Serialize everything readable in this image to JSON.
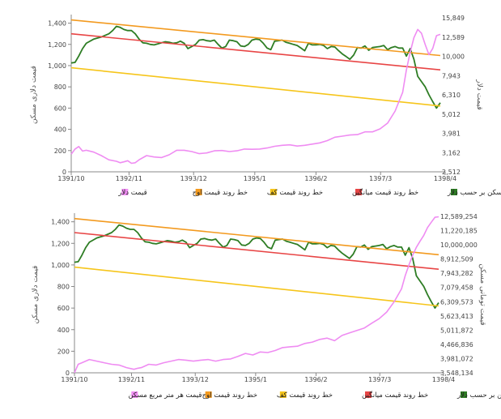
{
  "chart_data": [
    {
      "type": "line",
      "ylabel": "قیمت دلاری مسکن",
      "y2label": "قیمت دلار",
      "ylim": [
        0,
        1450
      ],
      "yticks": [
        0,
        200,
        400,
        600,
        800,
        1000,
        1200,
        1400
      ],
      "ytick_labels": [
        "0",
        "200",
        "400",
        "600",
        "800",
        "1,000",
        "1,200",
        "1,400"
      ],
      "y2lim": [
        2512,
        15849
      ],
      "y2ticks": [
        2512,
        3162,
        3981,
        5012,
        6310,
        7943,
        10000,
        12589,
        15849
      ],
      "y2tick_labels": [
        "2,512",
        "3,162",
        "3,981",
        "5,012",
        "6,310",
        "7,943",
        "10,000",
        "12,589",
        "15,849"
      ],
      "xlim": [
        0,
        98
      ],
      "xticks": [
        0,
        17,
        36,
        54,
        72,
        91
      ],
      "xtick_labels": [
        "1391/10",
        "1392/11",
        "1393/12",
        "1395/1",
        "1396/2",
        "1397/3",
        "1398/4"
      ],
      "xtick_positions": [
        0,
        17,
        36,
        54,
        72,
        91,
        110
      ],
      "series": [
        {
          "name": "قیمت مسکن بر حسب دلار",
          "color": "#2e7d24",
          "x": [
            0,
            1,
            2,
            3,
            4,
            6,
            7,
            8,
            10,
            11,
            12,
            13,
            14,
            15,
            16,
            17,
            18,
            19,
            20,
            21,
            22,
            23,
            24,
            25,
            26,
            27,
            28,
            29,
            30,
            31,
            32,
            33,
            34,
            35,
            36,
            37,
            38,
            39,
            40,
            41,
            42,
            43,
            44,
            45,
            46,
            47,
            48,
            49,
            50,
            51,
            52,
            53,
            54,
            55,
            56,
            57,
            58,
            59,
            60,
            61,
            62,
            63,
            64,
            65,
            66,
            67,
            68,
            69,
            70,
            71,
            72,
            73,
            74,
            75,
            76,
            77,
            78,
            79,
            80,
            81,
            82,
            83,
            84,
            85,
            86,
            87,
            88,
            89,
            90,
            91,
            92,
            93,
            94,
            95,
            96,
            97,
            98
          ],
          "values": [
            1025,
            1030,
            1090,
            1160,
            1210,
            1250,
            1260,
            1270,
            1300,
            1330,
            1370,
            1360,
            1340,
            1330,
            1330,
            1300,
            1250,
            1215,
            1210,
            1200,
            1195,
            1205,
            1215,
            1225,
            1220,
            1210,
            1215,
            1230,
            1210,
            1160,
            1180,
            1200,
            1240,
            1245,
            1235,
            1230,
            1240,
            1200,
            1165,
            1180,
            1240,
            1235,
            1225,
            1185,
            1180,
            1200,
            1240,
            1250,
            1245,
            1210,
            1165,
            1150,
            1230,
            1235,
            1240,
            1220,
            1210,
            1200,
            1190,
            1165,
            1140,
            1210,
            1195,
            1195,
            1200,
            1190,
            1160,
            1180,
            1175,
            1140,
            1110,
            1085,
            1060,
            1100,
            1170,
            1165,
            1185,
            1145,
            1170,
            1175,
            1180,
            1190,
            1150,
            1170,
            1180,
            1165,
            1165,
            1090,
            1160,
            1060,
            900,
            850,
            800,
            725,
            660,
            600,
            650
          ]
        },
        {
          "name": "خط روند قیمت اوج",
          "color": "#f39a1f",
          "x": [
            0,
            98
          ],
          "values": [
            1430,
            1095
          ]
        },
        {
          "name": "خط روند قیمت کف",
          "color": "#f6c51b",
          "x": [
            0,
            98
          ],
          "values": [
            980,
            620
          ]
        },
        {
          "name": "خط روند قیمت میانگین",
          "color": "#e84545",
          "x": [
            0,
            98
          ],
          "values": [
            1300,
            960
          ]
        },
        {
          "name": "قیمت دلار",
          "color": "#ef8cf2",
          "x": [
            0,
            1,
            2,
            3,
            4,
            6,
            8,
            10,
            12,
            13,
            14,
            15,
            16,
            17,
            18,
            20,
            22,
            24,
            26,
            28,
            30,
            32,
            34,
            36,
            38,
            40,
            42,
            44,
            46,
            48,
            50,
            52,
            54,
            56,
            58,
            60,
            62,
            64,
            66,
            68,
            70,
            72,
            74,
            76,
            78,
            80,
            82,
            84,
            86,
            88,
            89,
            90,
            91,
            92,
            93,
            94,
            95,
            96,
            97,
            98
          ],
          "values": [
            3100,
            3300,
            3400,
            3220,
            3250,
            3180,
            3050,
            2900,
            2850,
            2800,
            2830,
            2870,
            2780,
            2800,
            2900,
            3050,
            3000,
            2980,
            3080,
            3250,
            3250,
            3200,
            3120,
            3150,
            3230,
            3240,
            3200,
            3230,
            3300,
            3290,
            3300,
            3340,
            3410,
            3450,
            3470,
            3420,
            3450,
            3500,
            3550,
            3650,
            3800,
            3850,
            3900,
            3920,
            4050,
            4050,
            4200,
            4500,
            5200,
            6500,
            8500,
            10500,
            12500,
            13800,
            13200,
            11500,
            10200,
            11000,
            12800,
            13000
          ]
        }
      ]
    },
    {
      "type": "line",
      "ylabel": "قیمت دلاری مسکن",
      "y2label": "قیمت تومانی مسکن",
      "ylim": [
        0,
        1450
      ],
      "yticks": [
        0,
        200,
        400,
        600,
        800,
        1000,
        1200,
        1400
      ],
      "ytick_labels": [
        "0",
        "200",
        "400",
        "600",
        "800",
        "1,000",
        "1,200",
        "1,400"
      ],
      "y2ticks": [
        3548134,
        3981072,
        4466836,
        5011872,
        5623413,
        6309573,
        7079458,
        7943282,
        8912509,
        10000000,
        11220185,
        12589254
      ],
      "y2tick_labels": [
        "3,548,134",
        "3,981,072",
        "4,466,836",
        "5,011,872",
        "5,623,413",
        "6,309,573",
        "7,079,458",
        "7,943,282",
        "8,912,509",
        "10,000,000",
        "11,220,185",
        "12,589,254"
      ],
      "y2lim": [
        3548134,
        12589254
      ],
      "xlim": [
        0,
        98
      ],
      "xtick_labels": [
        "1391/10",
        "1392/11",
        "1393/12",
        "1395/1",
        "1396/2",
        "1397/3",
        "1398/4"
      ],
      "xtick_positions": [
        0,
        17,
        36,
        54,
        72,
        91,
        110
      ],
      "series": [
        {
          "name": "قیمت مسکن بر حسب دلار",
          "color": "#2e7d24",
          "x": [
            0,
            1,
            2,
            3,
            4,
            6,
            7,
            8,
            10,
            11,
            12,
            13,
            14,
            15,
            16,
            17,
            18,
            19,
            20,
            21,
            22,
            23,
            24,
            25,
            26,
            27,
            28,
            29,
            30,
            31,
            32,
            33,
            34,
            35,
            36,
            37,
            38,
            39,
            40,
            41,
            42,
            43,
            44,
            45,
            46,
            47,
            48,
            49,
            50,
            51,
            52,
            53,
            54,
            55,
            56,
            57,
            58,
            59,
            60,
            61,
            62,
            63,
            64,
            65,
            66,
            67,
            68,
            69,
            70,
            71,
            72,
            73,
            74,
            75,
            76,
            77,
            78,
            79,
            80,
            81,
            82,
            83,
            84,
            85,
            86,
            87,
            88,
            89,
            90,
            91,
            92,
            93,
            94,
            95,
            96,
            97,
            98
          ],
          "values": [
            1025,
            1030,
            1090,
            1160,
            1210,
            1250,
            1260,
            1270,
            1300,
            1330,
            1370,
            1360,
            1340,
            1330,
            1330,
            1300,
            1250,
            1215,
            1210,
            1200,
            1195,
            1205,
            1215,
            1225,
            1220,
            1210,
            1215,
            1230,
            1210,
            1160,
            1180,
            1200,
            1240,
            1245,
            1235,
            1230,
            1240,
            1200,
            1165,
            1180,
            1240,
            1235,
            1225,
            1185,
            1180,
            1200,
            1240,
            1250,
            1245,
            1210,
            1165,
            1150,
            1230,
            1235,
            1240,
            1220,
            1210,
            1200,
            1190,
            1165,
            1140,
            1210,
            1195,
            1195,
            1200,
            1190,
            1160,
            1180,
            1175,
            1140,
            1110,
            1085,
            1060,
            1100,
            1170,
            1165,
            1185,
            1145,
            1170,
            1175,
            1180,
            1190,
            1150,
            1170,
            1180,
            1165,
            1165,
            1090,
            1160,
            1060,
            900,
            850,
            800,
            725,
            660,
            600,
            650
          ]
        },
        {
          "name": "خط روند قیمت اوج",
          "color": "#f39a1f",
          "x": [
            0,
            98
          ],
          "values": [
            1430,
            1095
          ]
        },
        {
          "name": "خط روند قیمت کف",
          "color": "#f6c51b",
          "x": [
            0,
            98
          ],
          "values": [
            980,
            620
          ]
        },
        {
          "name": "خط روند قیمت میانگین",
          "color": "#e84545",
          "x": [
            0,
            98
          ],
          "values": [
            1300,
            960
          ]
        },
        {
          "name": "قیمت هر متر مربع مسکن",
          "color": "#ef8cf2",
          "x": [
            0,
            1,
            2,
            3,
            4,
            6,
            8,
            10,
            12,
            14,
            16,
            17,
            18,
            20,
            22,
            24,
            26,
            28,
            30,
            32,
            34,
            36,
            38,
            40,
            42,
            44,
            46,
            48,
            50,
            52,
            54,
            56,
            58,
            60,
            62,
            64,
            66,
            68,
            70,
            72,
            74,
            76,
            78,
            80,
            82,
            84,
            86,
            88,
            89,
            90,
            91,
            92,
            93,
            94,
            95,
            96,
            97,
            98
          ],
          "values": [
            3550000,
            3800000,
            3850000,
            3900000,
            3950000,
            3900000,
            3850000,
            3800000,
            3780000,
            3700000,
            3650000,
            3680000,
            3700000,
            3800000,
            3780000,
            3850000,
            3900000,
            3950000,
            3930000,
            3900000,
            3930000,
            3950000,
            3900000,
            3950000,
            3970000,
            4050000,
            4150000,
            4100000,
            4200000,
            4180000,
            4250000,
            4350000,
            4380000,
            4400000,
            4500000,
            4550000,
            4650000,
            4700000,
            4600000,
            4800000,
            4900000,
            5000000,
            5100000,
            5300000,
            5500000,
            5800000,
            6300000,
            7000000,
            7800000,
            8500000,
            9200000,
            9800000,
            10300000,
            10800000,
            11500000,
            12000000,
            12500000,
            12550000
          ]
        }
      ]
    }
  ],
  "legend": {
    "top": [
      "قیمت مسکن بر حسب دلار",
      "خط روند قیمت میانگین",
      "خط روند قیمت کف",
      "خط روند قیمت اوج",
      "قیمت دلار"
    ],
    "bottom": [
      "قیمت مسکن بر حسب دلار",
      "خط روند قیمت میانگین",
      "خط روند قیمت کف",
      "خط روند قیمت اوج",
      "قیمت هر متر مربع مسکن"
    ]
  }
}
